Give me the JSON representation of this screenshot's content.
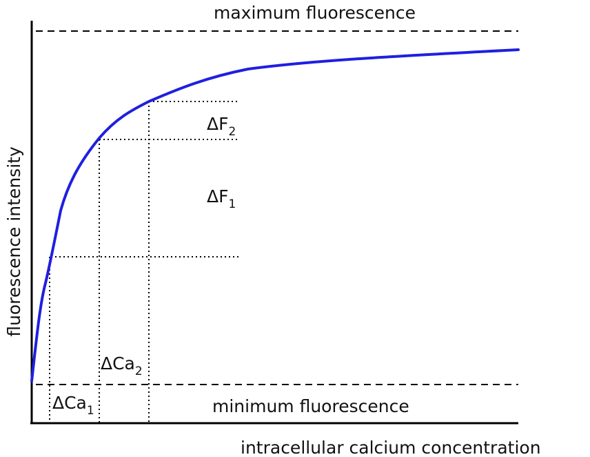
{
  "chart_data": {
    "type": "line",
    "title": "",
    "xlabel": "intracellular calcium concentration",
    "ylabel": "fluorescence intensity",
    "grid": false,
    "axes_ticks": false,
    "series": [
      {
        "color": "#1f1fe0",
        "shape": "saturating (hyperbolic) rise from minimum toward maximum fluorescence"
      }
    ],
    "reference_lines": {
      "maximum": {
        "label": "maximum fluorescence",
        "style": "dashed"
      },
      "minimum": {
        "label": "minimum fluorescence",
        "style": "dashed"
      }
    },
    "annotations": {
      "delta_f1": {
        "main": "ΔF",
        "sub": "1"
      },
      "delta_f2": {
        "main": "ΔF",
        "sub": "2"
      },
      "delta_ca1": {
        "main": "ΔCa",
        "sub": "1"
      },
      "delta_ca2": {
        "main": "ΔCa",
        "sub": "2"
      }
    },
    "colors": {
      "curve": "#1f1fe0",
      "axis": "#000000",
      "guides": "#000000"
    }
  }
}
